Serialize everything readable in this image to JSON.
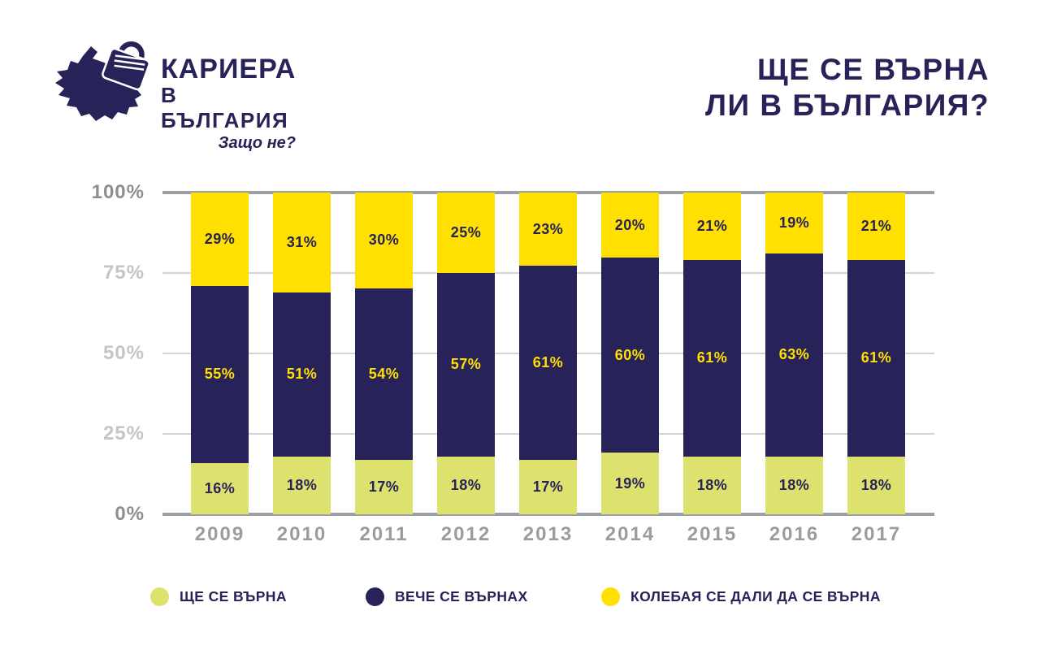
{
  "logo": {
    "line1": "КАРИЕРА",
    "line2": "В БЪЛГАРИЯ",
    "tagline": "Защо не?"
  },
  "title": {
    "line1": "ЩЕ СЕ ВЪРНА",
    "line2": "ЛИ В БЪЛГАРИЯ?"
  },
  "colors": {
    "navy": "#272257",
    "yellow": "#FFE000",
    "green": "#DDE26F",
    "axis_strong": "#9BA0A7",
    "grid_light": "#D3D4D6",
    "tick_strong": "#8C8E91",
    "tick_light": "#C4C5C8",
    "year_label": "#9B9CA0",
    "value_on_navy": "#FFE000",
    "value_on_light": "#272257"
  },
  "chart_data": {
    "type": "bar",
    "stacked": true,
    "title": "ЩЕ СЕ ВЪРНА ЛИ В БЪЛГАРИЯ?",
    "categories": [
      "2009",
      "2010",
      "2011",
      "2012",
      "2013",
      "2014",
      "2015",
      "2016",
      "2017"
    ],
    "series": [
      {
        "name": "ЩЕ СЕ ВЪРНА",
        "color_key": "green",
        "values": [
          16,
          18,
          17,
          18,
          17,
          19,
          18,
          18,
          18
        ]
      },
      {
        "name": "ВЕЧЕ СЕ ВЪРНАХ",
        "color_key": "navy",
        "values": [
          55,
          51,
          54,
          57,
          61,
          60,
          61,
          63,
          61
        ]
      },
      {
        "name": "КОЛЕБАЯ СЕ ДАЛИ ДА СЕ ВЪРНА",
        "color_key": "yellow",
        "values": [
          29,
          31,
          30,
          25,
          23,
          20,
          21,
          19,
          21
        ]
      }
    ],
    "y_ticks": [
      "100%",
      "75%",
      "50%",
      "25%",
      "0%"
    ],
    "ylim": [
      0,
      100
    ],
    "value_suffix": "%",
    "grid": true,
    "legend_position": "bottom"
  }
}
